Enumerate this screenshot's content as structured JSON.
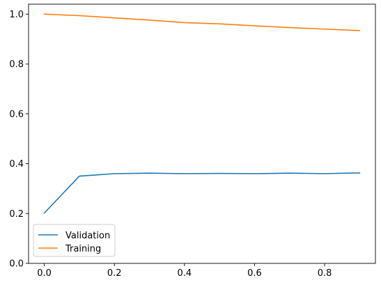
{
  "chart_data": {
    "type": "line",
    "x": [
      0.0,
      0.1,
      0.2,
      0.3,
      0.4,
      0.5,
      0.6,
      0.7,
      0.8,
      0.9
    ],
    "series": [
      {
        "name": "Validation",
        "color": "#1f77b4",
        "values": [
          0.202,
          0.35,
          0.36,
          0.362,
          0.36,
          0.361,
          0.36,
          0.362,
          0.36,
          0.363
        ]
      },
      {
        "name": "Training",
        "color": "#ff7f0e",
        "values": [
          1.0,
          0.994,
          0.985,
          0.976,
          0.966,
          0.961,
          0.953,
          0.946,
          0.94,
          0.934
        ]
      }
    ],
    "xlim": [
      -0.045,
      0.945
    ],
    "ylim": [
      0.0,
      1.04
    ],
    "xticks": [
      "0.0",
      "0.2",
      "0.4",
      "0.6",
      "0.8"
    ],
    "yticks": [
      "0.0",
      "0.2",
      "0.4",
      "0.6",
      "0.8",
      "1.0"
    ],
    "title": "",
    "xlabel": "",
    "ylabel": "",
    "grid": false,
    "legend_position": "lower-left"
  }
}
